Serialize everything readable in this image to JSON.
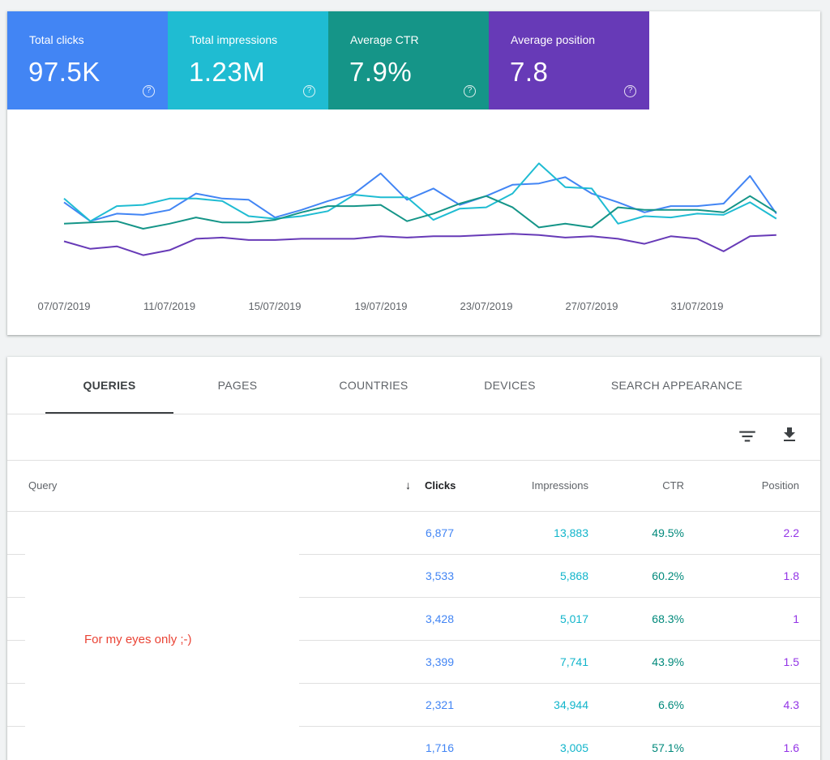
{
  "metrics": [
    {
      "label": "Total clicks",
      "value": "97.5K",
      "color": "#4285f4"
    },
    {
      "label": "Total impressions",
      "value": "1.23M",
      "color": "#1fbcd2"
    },
    {
      "label": "Average CTR",
      "value": "7.9%",
      "color": "#159588"
    },
    {
      "label": "Average position",
      "value": "7.8",
      "color": "#673ab7"
    }
  ],
  "help_glyph": "?",
  "chart_data": {
    "type": "line",
    "x": [
      "07/07/2019",
      "08/07/2019",
      "09/07/2019",
      "10/07/2019",
      "11/07/2019",
      "12/07/2019",
      "13/07/2019",
      "14/07/2019",
      "15/07/2019",
      "16/07/2019",
      "17/07/2019",
      "18/07/2019",
      "19/07/2019",
      "20/07/2019",
      "21/07/2019",
      "22/07/2019",
      "23/07/2019",
      "24/07/2019",
      "25/07/2019",
      "26/07/2019",
      "27/07/2019",
      "28/07/2019",
      "29/07/2019",
      "30/07/2019",
      "31/07/2019",
      "01/08/2019",
      "02/08/2019",
      "03/08/2019"
    ],
    "x_tick_labels": [
      "07/07/2019",
      "11/07/2019",
      "15/07/2019",
      "19/07/2019",
      "23/07/2019",
      "27/07/2019",
      "31/07/2019"
    ],
    "series_note": "values are normalized (0-100) per metric since the chart has no y axis",
    "series": [
      {
        "metric": "Total clicks",
        "color": "#4285f4",
        "values": [
          61,
          46,
          52,
          51,
          55,
          68,
          64,
          63,
          49,
          55,
          62,
          68,
          84,
          63,
          72,
          59,
          66,
          75,
          76,
          81,
          68,
          61,
          53,
          58,
          58,
          60,
          82,
          52
        ]
      },
      {
        "metric": "Total impressions",
        "color": "#1fbcd2",
        "values": [
          64,
          46,
          58,
          59,
          64,
          64,
          62,
          50,
          48,
          50,
          54,
          67,
          65,
          65,
          47,
          56,
          57,
          68,
          92,
          73,
          72,
          44,
          50,
          49,
          52,
          51,
          61,
          48
        ]
      },
      {
        "metric": "Average CTR",
        "color": "#159588",
        "values": [
          44,
          45,
          46,
          40,
          44,
          49,
          45,
          45,
          47,
          53,
          58,
          58,
          59,
          46,
          52,
          60,
          66,
          57,
          41,
          44,
          41,
          57,
          55,
          55,
          55,
          53,
          66,
          53
        ]
      },
      {
        "metric": "Average position",
        "color": "#673ab7",
        "values": [
          30,
          24,
          26,
          19,
          23,
          32,
          33,
          31,
          31,
          32,
          32,
          32,
          34,
          33,
          34,
          34,
          35,
          36,
          35,
          33,
          34,
          32,
          28,
          34,
          32,
          22,
          34,
          35
        ]
      }
    ],
    "grid": false,
    "legend": "none"
  },
  "tabs": [
    {
      "label": "QUERIES",
      "active": true
    },
    {
      "label": "PAGES",
      "active": false
    },
    {
      "label": "COUNTRIES",
      "active": false
    },
    {
      "label": "DEVICES",
      "active": false
    },
    {
      "label": "SEARCH APPEARANCE",
      "active": false
    }
  ],
  "toolbar": {
    "filter_icon": "filter-list-icon",
    "download_icon": "download-icon"
  },
  "table": {
    "headers": {
      "query": "Query",
      "clicks": "Clicks",
      "impressions": "Impressions",
      "ctr": "CTR",
      "position": "Position"
    },
    "sort_arrow": "↓",
    "rows": [
      {
        "clicks": "6,877",
        "impressions": "13,883",
        "ctr": "49.5%",
        "position": "2.2"
      },
      {
        "clicks": "3,533",
        "impressions": "5,868",
        "ctr": "60.2%",
        "position": "1.8"
      },
      {
        "clicks": "3,428",
        "impressions": "5,017",
        "ctr": "68.3%",
        "position": "1"
      },
      {
        "clicks": "3,399",
        "impressions": "7,741",
        "ctr": "43.9%",
        "position": "1.5"
      },
      {
        "clicks": "2,321",
        "impressions": "34,944",
        "ctr": "6.6%",
        "position": "4.3"
      },
      {
        "clicks": "1,716",
        "impressions": "3,005",
        "ctr": "57.1%",
        "position": "1.6"
      }
    ]
  },
  "privacy_note": "For my eyes only ;-)"
}
